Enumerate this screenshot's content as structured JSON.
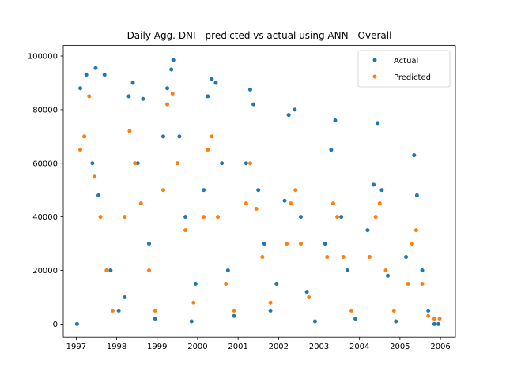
{
  "chart_data": {
    "type": "scatter",
    "title": "Daily Agg. DNI - predicted vs actual using ANN - Overall",
    "xlabel": "",
    "ylabel": "",
    "xlim": [
      1996.68,
      2006.37
    ],
    "ylim": [
      -4950,
      103950
    ],
    "x_ticks": [
      1997,
      1998,
      1999,
      2000,
      2001,
      2002,
      2003,
      2004,
      2005,
      2006
    ],
    "x_tick_labels": [
      "1997",
      "1998",
      "1999",
      "2000",
      "2001",
      "2002",
      "2003",
      "2004",
      "2005",
      "2006"
    ],
    "y_ticks": [
      0,
      20000,
      40000,
      60000,
      80000,
      100000
    ],
    "y_tick_labels": [
      "0",
      "20000",
      "40000",
      "60000",
      "80000",
      "100000"
    ],
    "grid": false,
    "legend": {
      "position": "top-right",
      "entries": [
        "Actual",
        "Predicted"
      ]
    },
    "series": [
      {
        "name": "Actual",
        "color": "#1f77b4",
        "values": [
          [
            1997.1,
            88000
          ],
          [
            1997.25,
            93000
          ],
          [
            1997.48,
            95500
          ],
          [
            1997.7,
            93000
          ],
          [
            1997.02,
            0
          ],
          [
            1997.4,
            60000
          ],
          [
            1997.55,
            48000
          ],
          [
            1997.85,
            20000
          ],
          [
            1998.05,
            5000
          ],
          [
            1998.2,
            10000
          ],
          [
            1998.3,
            85000
          ],
          [
            1998.4,
            90000
          ],
          [
            1998.52,
            60000
          ],
          [
            1998.65,
            84000
          ],
          [
            1998.8,
            30000
          ],
          [
            1998.95,
            2000
          ],
          [
            1999.15,
            70000
          ],
          [
            1999.25,
            88000
          ],
          [
            1999.35,
            95000
          ],
          [
            1999.4,
            98500
          ],
          [
            1999.55,
            70000
          ],
          [
            1999.7,
            40000
          ],
          [
            1999.85,
            1000
          ],
          [
            1999.95,
            15000
          ],
          [
            2000.15,
            50000
          ],
          [
            2000.25,
            85000
          ],
          [
            2000.35,
            91500
          ],
          [
            2000.45,
            90000
          ],
          [
            2000.6,
            60000
          ],
          [
            2000.75,
            20000
          ],
          [
            2000.9,
            3000
          ],
          [
            2001.2,
            60000
          ],
          [
            2001.3,
            87500
          ],
          [
            2001.38,
            82000
          ],
          [
            2001.5,
            50000
          ],
          [
            2001.65,
            30000
          ],
          [
            2001.8,
            5000
          ],
          [
            2001.95,
            15000
          ],
          [
            2002.15,
            46000
          ],
          [
            2002.25,
            78000
          ],
          [
            2002.4,
            80000
          ],
          [
            2002.55,
            40000
          ],
          [
            2002.7,
            12000
          ],
          [
            2002.9,
            1000
          ],
          [
            2003.15,
            30000
          ],
          [
            2003.3,
            65000
          ],
          [
            2003.4,
            76000
          ],
          [
            2003.55,
            40000
          ],
          [
            2003.7,
            20000
          ],
          [
            2003.9,
            2000
          ],
          [
            2004.2,
            35000
          ],
          [
            2004.35,
            52000
          ],
          [
            2004.45,
            75000
          ],
          [
            2004.55,
            50000
          ],
          [
            2004.7,
            18000
          ],
          [
            2004.9,
            1000
          ],
          [
            2005.15,
            25000
          ],
          [
            2005.35,
            63000
          ],
          [
            2005.42,
            48000
          ],
          [
            2005.55,
            20000
          ],
          [
            2005.7,
            5000
          ],
          [
            2005.85,
            0
          ],
          [
            2005.95,
            0
          ]
        ]
      },
      {
        "name": "Predicted",
        "color": "#ff7f0e",
        "values": [
          [
            1997.1,
            65000
          ],
          [
            1997.2,
            70000
          ],
          [
            1997.32,
            85000
          ],
          [
            1997.45,
            55000
          ],
          [
            1997.6,
            40000
          ],
          [
            1997.75,
            20000
          ],
          [
            1997.9,
            5000
          ],
          [
            1998.2,
            40000
          ],
          [
            1998.32,
            72000
          ],
          [
            1998.45,
            60000
          ],
          [
            1998.6,
            45000
          ],
          [
            1998.8,
            20000
          ],
          [
            1998.95,
            5000
          ],
          [
            1999.15,
            50000
          ],
          [
            1999.25,
            82000
          ],
          [
            1999.38,
            86000
          ],
          [
            1999.5,
            60000
          ],
          [
            1999.7,
            35000
          ],
          [
            1999.9,
            8000
          ],
          [
            2000.15,
            40000
          ],
          [
            2000.25,
            65000
          ],
          [
            2000.35,
            70000
          ],
          [
            2000.5,
            40000
          ],
          [
            2000.7,
            15000
          ],
          [
            2000.9,
            5000
          ],
          [
            2001.2,
            45000
          ],
          [
            2001.3,
            60000
          ],
          [
            2001.45,
            43000
          ],
          [
            2001.6,
            25000
          ],
          [
            2001.8,
            8000
          ],
          [
            2002.2,
            30000
          ],
          [
            2002.3,
            45000
          ],
          [
            2002.42,
            50000
          ],
          [
            2002.55,
            30000
          ],
          [
            2002.75,
            10000
          ],
          [
            2003.2,
            25000
          ],
          [
            2003.35,
            45000
          ],
          [
            2003.45,
            40000
          ],
          [
            2003.6,
            25000
          ],
          [
            2003.8,
            5000
          ],
          [
            2004.25,
            25000
          ],
          [
            2004.4,
            40000
          ],
          [
            2004.5,
            45000
          ],
          [
            2004.65,
            20000
          ],
          [
            2004.85,
            5000
          ],
          [
            2005.2,
            15000
          ],
          [
            2005.3,
            30000
          ],
          [
            2005.4,
            35000
          ],
          [
            2005.55,
            15000
          ],
          [
            2005.7,
            3000
          ],
          [
            2005.85,
            2000
          ],
          [
            2005.98,
            2000
          ]
        ]
      }
    ]
  }
}
